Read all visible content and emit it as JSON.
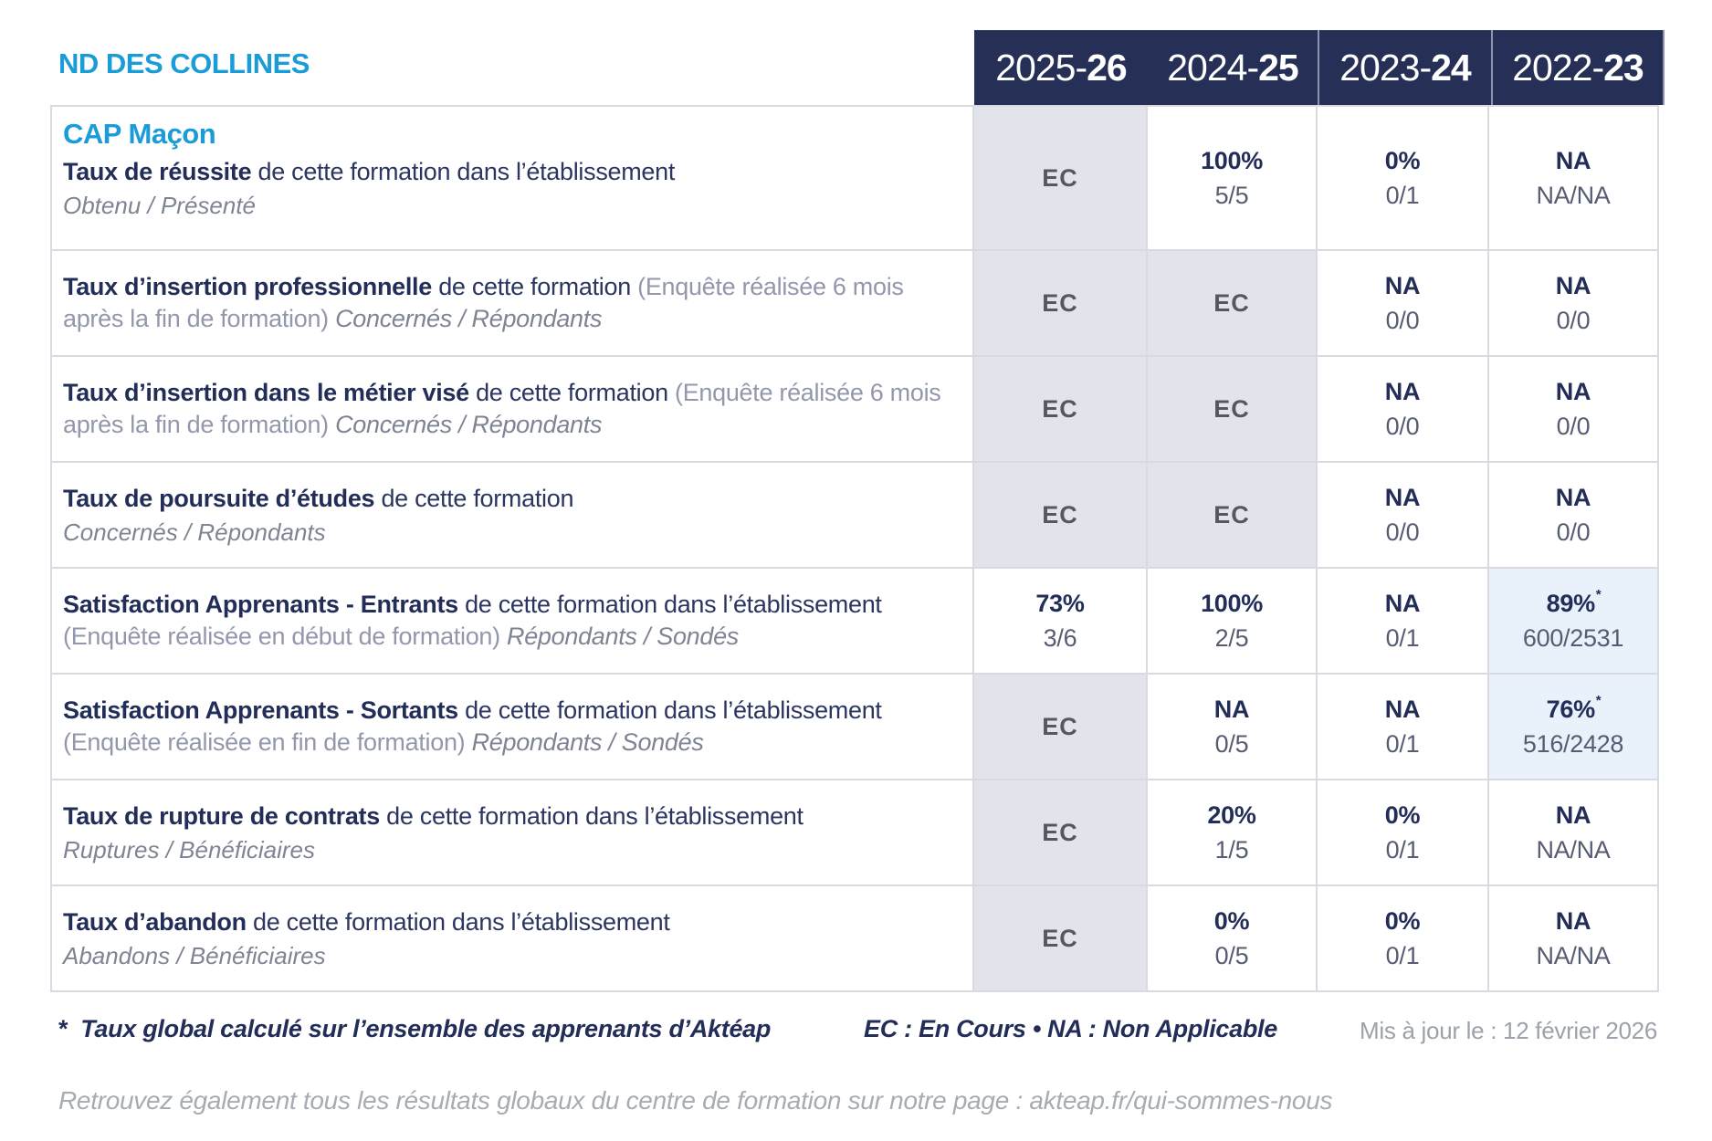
{
  "header": {
    "school_name": "ND DES COLLINES",
    "years": [
      {
        "prefix": "2025-",
        "suffix": "26"
      },
      {
        "prefix": "2024-",
        "suffix": "25"
      },
      {
        "prefix": "2023-",
        "suffix": "24"
      },
      {
        "prefix": "2022-",
        "suffix": "23"
      }
    ]
  },
  "formation_title": "CAP Maçon",
  "table": {
    "rows": [
      {
        "title": "Taux de réussite",
        "desc": "de cette formation dans l’établissement",
        "paren": "",
        "inline_note": "",
        "subline": "Obtenu / Présenté",
        "cells": [
          {
            "value": "EC",
            "sub": "",
            "bg": "gray",
            "muted": true,
            "star": false
          },
          {
            "value": "100%",
            "sub": "5/5",
            "bg": "white",
            "muted": false,
            "star": false
          },
          {
            "value": "0%",
            "sub": "0/1",
            "bg": "white",
            "muted": false,
            "star": false
          },
          {
            "value": "NA",
            "sub": "NA/NA",
            "bg": "white",
            "muted": false,
            "star": false
          }
        ]
      },
      {
        "title": "Taux d’insertion professionnelle",
        "desc": "de cette formation",
        "paren": "(Enquête réalisée 6 mois après la fin de formation)",
        "inline_note": "Concernés / Répondants",
        "subline": "",
        "cells": [
          {
            "value": "EC",
            "sub": "",
            "bg": "gray",
            "muted": true,
            "star": false
          },
          {
            "value": "EC",
            "sub": "",
            "bg": "gray",
            "muted": true,
            "star": false
          },
          {
            "value": "NA",
            "sub": "0/0",
            "bg": "white",
            "muted": false,
            "star": false
          },
          {
            "value": "NA",
            "sub": "0/0",
            "bg": "white",
            "muted": false,
            "star": false
          }
        ]
      },
      {
        "title": "Taux d’insertion dans le métier visé",
        "desc": "de cette formation",
        "paren": "(Enquête réalisée 6 mois après la fin de formation)",
        "inline_note": "Concernés / Répondants",
        "subline": "",
        "cells": [
          {
            "value": "EC",
            "sub": "",
            "bg": "gray",
            "muted": true,
            "star": false
          },
          {
            "value": "EC",
            "sub": "",
            "bg": "gray",
            "muted": true,
            "star": false
          },
          {
            "value": "NA",
            "sub": "0/0",
            "bg": "white",
            "muted": false,
            "star": false
          },
          {
            "value": "NA",
            "sub": "0/0",
            "bg": "white",
            "muted": false,
            "star": false
          }
        ]
      },
      {
        "title": "Taux de poursuite d’études",
        "desc": "de cette formation",
        "paren": "",
        "inline_note": "",
        "subline": "Concernés / Répondants",
        "cells": [
          {
            "value": "EC",
            "sub": "",
            "bg": "gray",
            "muted": true,
            "star": false
          },
          {
            "value": "EC",
            "sub": "",
            "bg": "gray",
            "muted": true,
            "star": false
          },
          {
            "value": "NA",
            "sub": "0/0",
            "bg": "white",
            "muted": false,
            "star": false
          },
          {
            "value": "NA",
            "sub": "0/0",
            "bg": "white",
            "muted": false,
            "star": false
          }
        ]
      },
      {
        "title": "Satisfaction Apprenants - Entrants",
        "desc": "de cette formation dans l’établissement",
        "paren": "(Enquête réalisée en début de formation)",
        "inline_note": "Répondants / Sondés",
        "subline": "",
        "cells": [
          {
            "value": "73%",
            "sub": "3/6",
            "bg": "white",
            "muted": false,
            "star": false
          },
          {
            "value": "100%",
            "sub": "2/5",
            "bg": "white",
            "muted": false,
            "star": false
          },
          {
            "value": "NA",
            "sub": "0/1",
            "bg": "white",
            "muted": false,
            "star": false
          },
          {
            "value": "89%",
            "sub": "600/2531",
            "bg": "blue",
            "muted": false,
            "star": true
          }
        ]
      },
      {
        "title": "Satisfaction Apprenants - Sortants",
        "desc": "de cette formation dans l’établissement",
        "paren": "(Enquête réalisée en fin de formation)",
        "inline_note": "Répondants / Sondés",
        "subline": "",
        "cells": [
          {
            "value": "EC",
            "sub": "",
            "bg": "gray",
            "muted": true,
            "star": false
          },
          {
            "value": "NA",
            "sub": "0/5",
            "bg": "white",
            "muted": false,
            "star": false
          },
          {
            "value": "NA",
            "sub": "0/1",
            "bg": "white",
            "muted": false,
            "star": false
          },
          {
            "value": "76%",
            "sub": "516/2428",
            "bg": "blue",
            "muted": false,
            "star": true
          }
        ]
      },
      {
        "title": "Taux de rupture de contrats",
        "desc": "de cette formation dans l’établissement",
        "paren": "",
        "inline_note": "",
        "subline": "Ruptures / Bénéficiaires",
        "cells": [
          {
            "value": "EC",
            "sub": "",
            "bg": "gray",
            "muted": true,
            "star": false
          },
          {
            "value": "20%",
            "sub": "1/5",
            "bg": "white",
            "muted": false,
            "star": false
          },
          {
            "value": "0%",
            "sub": "0/1",
            "bg": "white",
            "muted": false,
            "star": false
          },
          {
            "value": "NA",
            "sub": "NA/NA",
            "bg": "white",
            "muted": false,
            "star": false
          }
        ]
      },
      {
        "title": "Taux d’abandon",
        "desc": "de cette formation dans l’établissement",
        "paren": "",
        "inline_note": "",
        "subline": "Abandons / Bénéficiaires",
        "cells": [
          {
            "value": "EC",
            "sub": "",
            "bg": "gray",
            "muted": true,
            "star": false
          },
          {
            "value": "0%",
            "sub": "0/5",
            "bg": "white",
            "muted": false,
            "star": false
          },
          {
            "value": "0%",
            "sub": "0/1",
            "bg": "white",
            "muted": false,
            "star": false
          },
          {
            "value": "NA",
            "sub": "NA/NA",
            "bg": "white",
            "muted": false,
            "star": false
          }
        ]
      }
    ]
  },
  "footer": {
    "note_star": "*",
    "note": "Taux global calculé sur l’ensemble des apprenants d’Aktéap",
    "legend": "EC : En Cours  •  NA : Non Applicable",
    "updated": "Mis à jour le : 12 février 2026",
    "bottom_line": "Retrouvez également tous les résultats globaux du centre de formation sur notre page : akteap.fr/qui-sommes-nous"
  },
  "colors": {
    "accent_blue": "#1a9cd8",
    "navy": "#263056",
    "lavender_cell": "#e3e3ec",
    "highlight_blue_cell": "#e9f2fa",
    "border": "#d9d9e2"
  }
}
